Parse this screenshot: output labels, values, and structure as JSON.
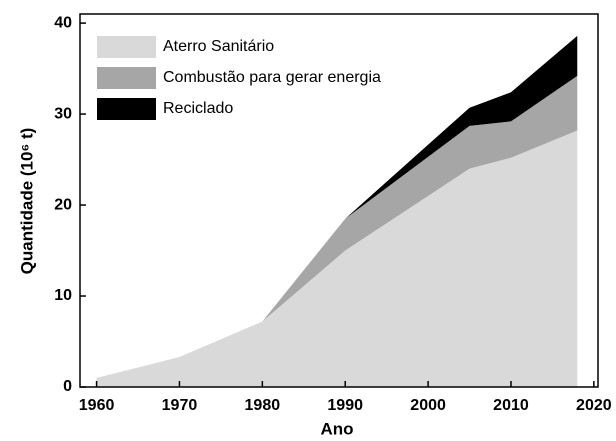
{
  "chart_data": {
    "type": "stacked_area",
    "x_label": "Ano",
    "y_label": "Quantidade (10⁶ t)",
    "x": [
      1960,
      1970,
      1980,
      1990,
      2005,
      2010,
      2018
    ],
    "series": [
      {
        "name": "Aterro Sanitário",
        "color": "#d9d9d9",
        "values": [
          1,
          3.3,
          7.2,
          15,
          24,
          25.2,
          28.2
        ]
      },
      {
        "name": "Combustão para gerar energia",
        "color": "#a6a6a6",
        "values": [
          0,
          0,
          0,
          3.5,
          4.7,
          4.0,
          6.0
        ]
      },
      {
        "name": "Reciclado",
        "color": "#000000",
        "values": [
          0,
          0,
          0,
          0,
          2.0,
          3.2,
          4.4
        ]
      }
    ],
    "xlim": [
      1958,
      2020.5
    ],
    "xticks": [
      1960,
      1970,
      1980,
      1990,
      2000,
      2010,
      2020
    ],
    "ylim": [
      0,
      41
    ],
    "yticks": [
      0,
      10,
      20,
      30,
      40
    ],
    "legend": "upper left"
  }
}
